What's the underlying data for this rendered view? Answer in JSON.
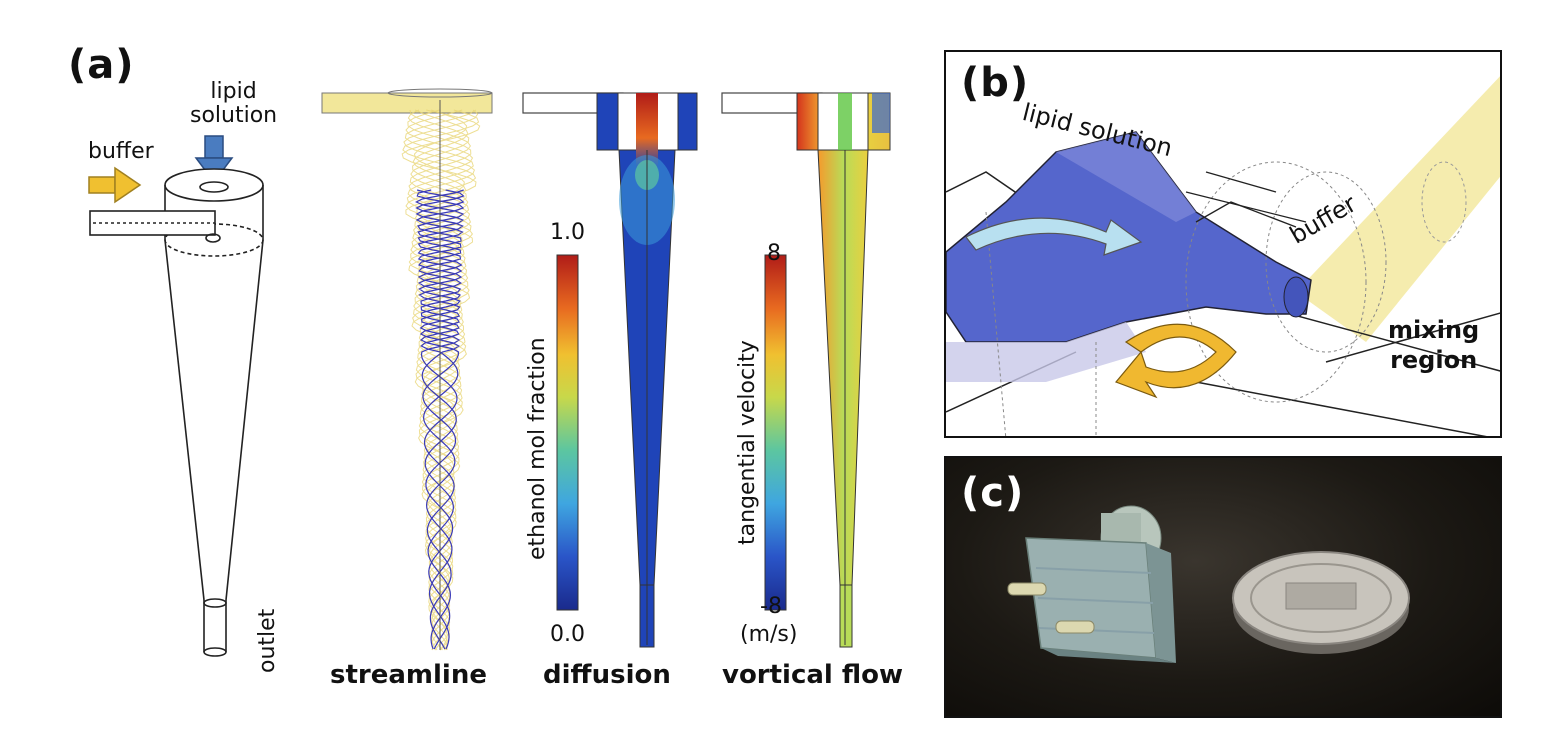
{
  "panel_a": {
    "letter": "(a)",
    "label_lipid": "lipid\nsolution",
    "label_buffer": "buffer",
    "label_outlet": "outlet",
    "captions": {
      "streamline": "streamline",
      "diffusion": "diffusion",
      "vortical": "vortical flow"
    },
    "colorbar_ethanol": {
      "title": "ethanol mol fraction",
      "max": "1.0",
      "min": "0.0"
    },
    "colorbar_velocity": {
      "title": "tangential velocity",
      "max": "8",
      "min": "-8",
      "unit": "(m/s)"
    }
  },
  "panel_b": {
    "letter": "(b)",
    "label_lipid": "lipid solution",
    "label_buffer": "buffer",
    "label_mixing": "mixing\nregion"
  },
  "panel_c": {
    "letter": "(c)"
  },
  "colors": {
    "lipid_blue": "#5566cc",
    "buffer_yellow": "#f2e79a",
    "arrow_yellow": "#f0b830",
    "arrow_blue": "#4a7cc0"
  }
}
